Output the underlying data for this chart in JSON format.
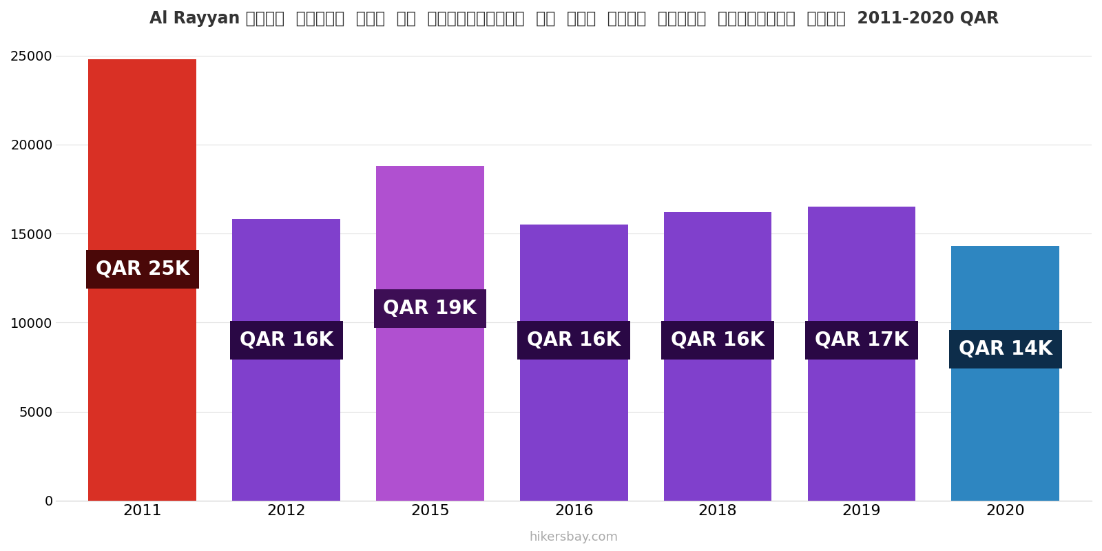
{
  "years": [
    "2011",
    "2012",
    "2015",
    "2016",
    "2018",
    "2019",
    "2020"
  ],
  "values": [
    24800,
    15800,
    18800,
    15500,
    16200,
    16500,
    14300
  ],
  "bar_colors": [
    "#d93025",
    "#8040cc",
    "#b050d0",
    "#8040cc",
    "#8040cc",
    "#8040cc",
    "#2e86c1"
  ],
  "label_texts": [
    "QAR 25K",
    "QAR 16K",
    "QAR 19K",
    "QAR 16K",
    "QAR 16K",
    "QAR 17K",
    "QAR 14K"
  ],
  "label_bg_colors": [
    "#4a0808",
    "#2a0845",
    "#3d0e55",
    "#2a0845",
    "#2a0845",
    "#2a0845",
    "#0d2d4a"
  ],
  "label_y_values": [
    13000,
    9000,
    10800,
    9000,
    9000,
    9000,
    8500
  ],
  "title": "Al Rayyan सिटी  सेंटर  में  एक  अपार्टमेंट  के  लिए  कीमत  प्रति  स्क्वायर  मीटर  2011-2020 QAR",
  "ylim": [
    0,
    26000
  ],
  "yticks": [
    0,
    5000,
    10000,
    15000,
    20000,
    25000
  ],
  "watermark": "hikersbay.com",
  "bg_color": "#ffffff",
  "label_fontsize": 20,
  "bar_width": 0.75,
  "title_fontsize": 17
}
